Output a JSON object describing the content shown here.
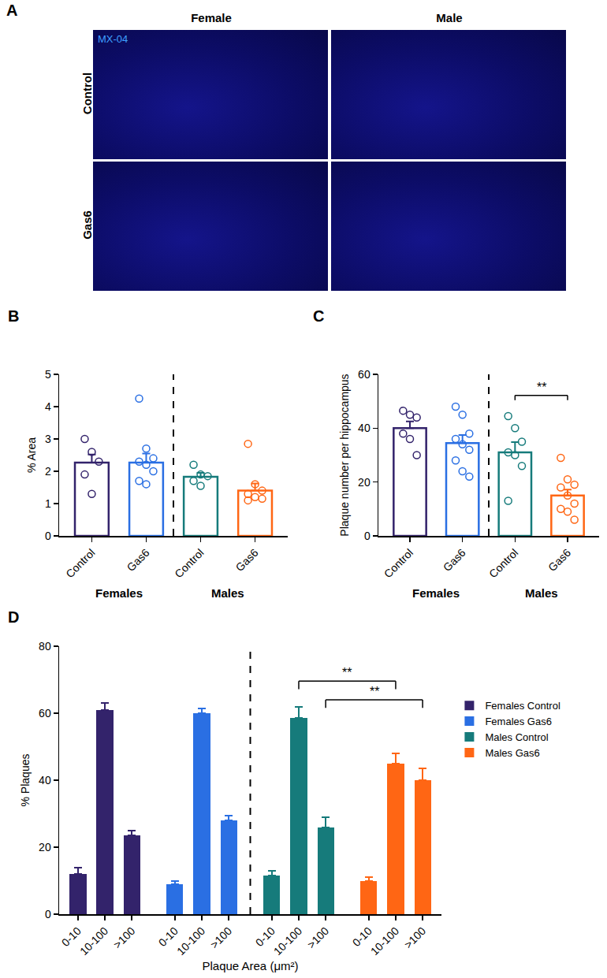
{
  "image_panel": {
    "title": "A",
    "stain": "MX-04",
    "columns": [
      "Female",
      "Male"
    ],
    "rows": [
      "Control",
      "Gas6"
    ]
  },
  "chart_data": [
    {
      "type": "bar",
      "title": "B",
      "y_label": "% Area",
      "categories": [
        "Control",
        "Gas6",
        "Control",
        "Gas6"
      ],
      "groups": [
        "Females",
        "Males"
      ],
      "values": [
        2.27,
        2.27,
        1.83,
        1.4
      ],
      "errors": [
        0.25,
        0.28,
        0.12,
        0.22
      ],
      "points": [
        [
          3.0,
          2.6,
          2.3,
          1.9,
          1.3
        ],
        [
          4.25,
          2.7,
          2.4,
          2.3,
          2.2,
          2.0,
          1.7,
          1.6
        ],
        [
          2.2,
          1.9,
          1.85,
          1.7,
          1.55
        ],
        [
          2.85,
          1.6,
          1.4,
          1.3,
          1.2,
          1.15,
          1.1
        ]
      ],
      "colors": [
        "#33236b",
        "#2a6fe3",
        "#167b7b",
        "#ff6614"
      ],
      "ylim": [
        0,
        5
      ],
      "yticks": [
        0,
        1,
        2,
        3,
        4,
        5
      ]
    },
    {
      "type": "bar",
      "title": "C",
      "y_label": "Plaque number per hippocampus",
      "categories": [
        "Control",
        "Gas6",
        "Control",
        "Gas6"
      ],
      "groups": [
        "Females",
        "Males"
      ],
      "values": [
        40,
        34.5,
        31,
        15
      ],
      "errors": [
        2.5,
        3,
        3.8,
        2.2
      ],
      "points": [
        [
          46.5,
          45,
          44,
          38,
          36,
          30
        ],
        [
          48,
          45,
          38,
          36,
          34,
          32,
          28,
          24,
          22
        ],
        [
          44.5,
          40,
          35,
          31,
          30,
          26,
          13
        ],
        [
          29,
          21,
          19,
          18,
          15,
          12,
          10,
          9,
          6
        ]
      ],
      "colors": [
        "#33236b",
        "#2a6fe3",
        "#167b7b",
        "#ff6614"
      ],
      "ylim": [
        0,
        60
      ],
      "yticks": [
        0,
        20,
        40,
        60
      ],
      "significance": [
        {
          "text": "**",
          "from": 2,
          "to": 3
        }
      ]
    },
    {
      "type": "bar",
      "title": "D",
      "x_label": "Plaque Area (μm²)",
      "y_label": "% Plaques",
      "categories": [
        "0-10",
        "10-100",
        ">100"
      ],
      "series": [
        {
          "name": "Females Control",
          "color": "#33236b",
          "values": [
            12,
            61,
            23.5
          ],
          "errors": [
            2,
            2,
            1.5
          ]
        },
        {
          "name": "Females Gas6",
          "color": "#2a6fe3",
          "values": [
            9,
            60,
            28
          ],
          "errors": [
            1,
            1.5,
            1.5
          ]
        },
        {
          "name": "Males Control",
          "color": "#167b7b",
          "values": [
            11.5,
            58.5,
            26
          ],
          "errors": [
            1.5,
            3.5,
            3
          ]
        },
        {
          "name": "Males Gas6",
          "color": "#ff6614",
          "values": [
            10,
            45,
            40
          ],
          "errors": [
            1,
            3,
            3.5
          ]
        }
      ],
      "legend": "right",
      "ylim": [
        0,
        80
      ],
      "yticks": [
        0,
        20,
        40,
        60,
        80
      ],
      "significance": [
        {
          "text": "**",
          "from": {
            "series": "Males Control",
            "category": "10-100"
          },
          "to": {
            "series": "Males Gas6",
            "category": "10-100"
          }
        },
        {
          "text": "**",
          "from": {
            "series": "Males Control",
            "category": ">100"
          },
          "to": {
            "series": "Males Gas6",
            "category": ">100"
          }
        }
      ]
    }
  ]
}
